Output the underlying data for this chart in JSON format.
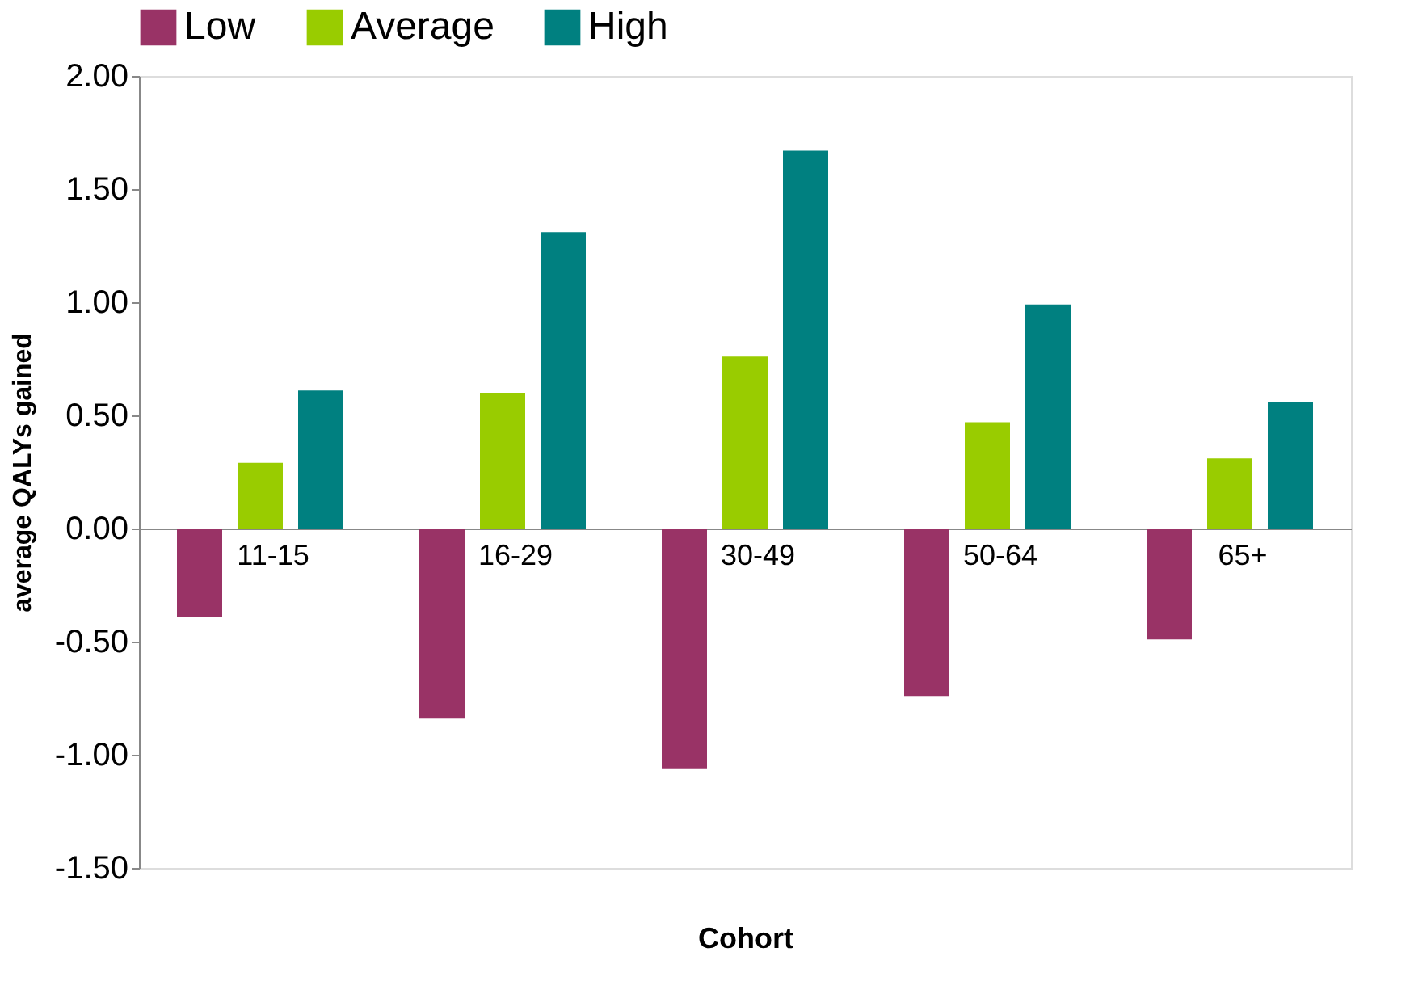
{
  "chart_data": {
    "type": "bar",
    "xlabel": "Cohort",
    "ylabel": "average QALYs gained",
    "categories": [
      "11-15",
      "16-29",
      "30-49",
      "50-64",
      "65+"
    ],
    "series": [
      {
        "name": "Low",
        "color": "#993366",
        "values": [
          -0.39,
          -0.84,
          -1.06,
          -0.74,
          -0.49
        ]
      },
      {
        "name": "Average",
        "color": "#99cc00",
        "values": [
          0.29,
          0.6,
          0.76,
          0.47,
          0.31
        ]
      },
      {
        "name": "High",
        "color": "#008080",
        "values": [
          0.61,
          1.31,
          1.67,
          0.99,
          0.56
        ]
      }
    ],
    "ylim": [
      -1.5,
      2.0
    ],
    "yticks": [
      {
        "value": -1.5,
        "label": "-1.50"
      },
      {
        "value": -1.0,
        "label": "-1.00"
      },
      {
        "value": -0.5,
        "label": "-0.50"
      },
      {
        "value": 0.0,
        "label": "0.00"
      },
      {
        "value": 0.5,
        "label": "0.50"
      },
      {
        "value": 1.0,
        "label": "1.00"
      },
      {
        "value": 1.5,
        "label": "1.50"
      },
      {
        "value": 2.0,
        "label": "2.00"
      }
    ],
    "grid": false,
    "legend": "top"
  }
}
